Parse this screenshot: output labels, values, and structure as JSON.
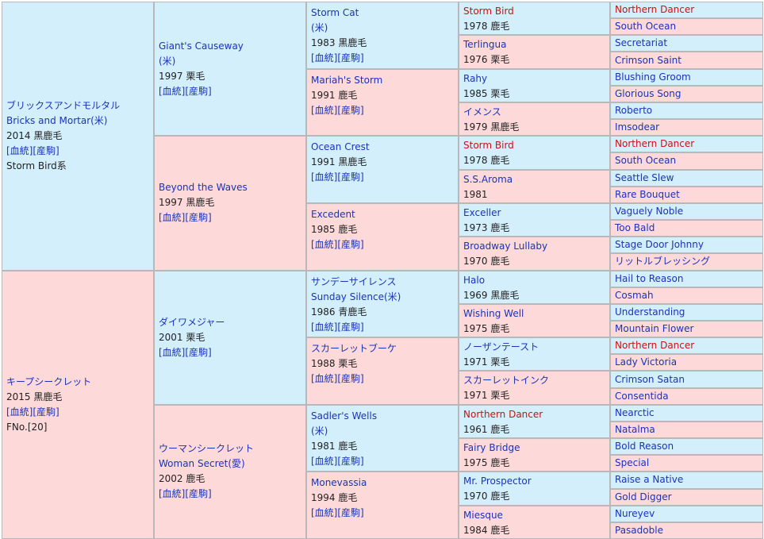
{
  "gen1": [
    {
      "lines": [
        "ブリックスアンドモルタル",
        "Bricks and Mortar(米)",
        "2014 黒鹿毛",
        "[血統][産駒]",
        "Storm Bird系"
      ],
      "link_lines": [
        0,
        1,
        3
      ]
    },
    {
      "lines": [
        "キープシークレット",
        "2015 黒鹿毛",
        "[血統][産駒]",
        "FNo.[20]"
      ],
      "link_lines": [
        0,
        2
      ]
    }
  ],
  "gen2": [
    {
      "lines": [
        "Giant's Causeway",
        "(米)",
        "1997 栗毛",
        "[血統][産駒]"
      ],
      "link_lines": [
        0,
        1,
        3
      ]
    },
    {
      "lines": [
        "Beyond the Waves",
        "1997 黒鹿毛",
        "[血統][産駒]"
      ],
      "link_lines": [
        0,
        2
      ]
    },
    {
      "lines": [
        "ダイワメジャー",
        "2001 栗毛",
        "[血統][産駒]"
      ],
      "link_lines": [
        0,
        2
      ]
    },
    {
      "lines": [
        "ウーマンシークレット",
        "Woman Secret(愛)",
        "2002 鹿毛",
        "[血統][産駒]"
      ],
      "link_lines": [
        0,
        1,
        3
      ]
    }
  ],
  "gen3": [
    {
      "lines": [
        "Storm Cat",
        "(米)",
        "1983 黒鹿毛",
        "[血統][産駒]"
      ],
      "link_lines": [
        0,
        1,
        3
      ]
    },
    {
      "lines": [
        "Mariah's Storm",
        "1991 鹿毛",
        "[血統][産駒]"
      ],
      "link_lines": [
        0,
        2
      ]
    },
    {
      "lines": [
        "Ocean Crest",
        "1991 黒鹿毛",
        "[血統][産駒]"
      ],
      "link_lines": [
        0,
        2
      ]
    },
    {
      "lines": [
        "Excedent",
        "1985 鹿毛",
        "[血統][産駒]"
      ],
      "link_lines": [
        0,
        2
      ]
    },
    {
      "lines": [
        "サンデーサイレンス",
        "Sunday Silence(米)",
        "1986 青鹿毛",
        "[血統][産駒]"
      ],
      "link_lines": [
        0,
        1,
        3
      ]
    },
    {
      "lines": [
        "スカーレットブーケ",
        "1988 栗毛",
        "[血統][産駒]"
      ],
      "link_lines": [
        0,
        2
      ]
    },
    {
      "lines": [
        "Sadler's Wells",
        "(米)",
        "1981 鹿毛",
        "[血統][産駒]"
      ],
      "link_lines": [
        0,
        1,
        3
      ]
    },
    {
      "lines": [
        "Monevassia",
        "1994 鹿毛",
        "[血統][産駒]"
      ],
      "link_lines": [
        0,
        2
      ]
    }
  ],
  "gen4": [
    {
      "name": "Storm Bird",
      "year": "1978 鹿毛",
      "red": true
    },
    {
      "name": "Terlingua",
      "year": "1976 栗毛",
      "red": false
    },
    {
      "name": "Rahy",
      "year": "1985 栗毛",
      "red": false
    },
    {
      "name": "イメンス",
      "year": "1979 黒鹿毛",
      "red": false
    },
    {
      "name": "Storm Bird",
      "year": "1978 鹿毛",
      "red": true
    },
    {
      "name": "S.S.Aroma",
      "year": "1981",
      "red": false
    },
    {
      "name": "Exceller",
      "year": "1973 鹿毛",
      "red": false
    },
    {
      "name": "Broadway Lullaby",
      "year": "1970 鹿毛",
      "red": false
    },
    {
      "name": "Halo",
      "year": "1969 黒鹿毛",
      "red": false
    },
    {
      "name": "Wishing Well",
      "year": "1975 鹿毛",
      "red": false
    },
    {
      "name": "ノーザンテースト",
      "year": "1971 栗毛",
      "red": false
    },
    {
      "name": "スカーレットインク",
      "year": "1971 栗毛",
      "red": false
    },
    {
      "name": "Northern Dancer",
      "year": "1961 鹿毛",
      "red": true
    },
    {
      "name": "Fairy Bridge",
      "year": "1975 鹿毛",
      "red": false
    },
    {
      "name": "Mr. Prospector",
      "year": "1970 鹿毛",
      "red": false
    },
    {
      "name": "Miesque",
      "year": "1984 鹿毛",
      "red": false
    }
  ],
  "gen5": [
    {
      "name": "Northern Dancer",
      "red": true
    },
    {
      "name": "South Ocean",
      "red": false
    },
    {
      "name": "Secretariat",
      "red": false
    },
    {
      "name": "Crimson Saint",
      "red": false
    },
    {
      "name": "Blushing Groom",
      "red": false
    },
    {
      "name": "Glorious Song",
      "red": false
    },
    {
      "name": "Roberto",
      "red": false
    },
    {
      "name": "Imsodear",
      "red": false
    },
    {
      "name": "Northern Dancer",
      "red": true
    },
    {
      "name": "South Ocean",
      "red": false
    },
    {
      "name": "Seattle Slew",
      "red": false
    },
    {
      "name": "Rare Bouquet",
      "red": false
    },
    {
      "name": "Vaguely Noble",
      "red": false
    },
    {
      "name": "Too Bald",
      "red": false
    },
    {
      "name": "Stage Door Johnny",
      "red": false
    },
    {
      "name": "リットルブレッシング",
      "red": false
    },
    {
      "name": "Hail to Reason",
      "red": false
    },
    {
      "name": "Cosmah",
      "red": false
    },
    {
      "name": "Understanding",
      "red": false
    },
    {
      "name": "Mountain Flower",
      "red": false
    },
    {
      "name": "Northern Dancer",
      "red": true
    },
    {
      "name": "Lady Victoria",
      "red": false
    },
    {
      "name": "Crimson Satan",
      "red": false
    },
    {
      "name": "Consentida",
      "red": false
    },
    {
      "name": "Nearctic",
      "red": false
    },
    {
      "name": "Natalma",
      "red": false
    },
    {
      "name": "Bold Reason",
      "red": false
    },
    {
      "name": "Special",
      "red": false
    },
    {
      "name": "Raise a Native",
      "red": false
    },
    {
      "name": "Gold Digger",
      "red": false
    },
    {
      "name": "Nureyev",
      "red": false
    },
    {
      "name": "Pasadoble",
      "red": false
    }
  ]
}
